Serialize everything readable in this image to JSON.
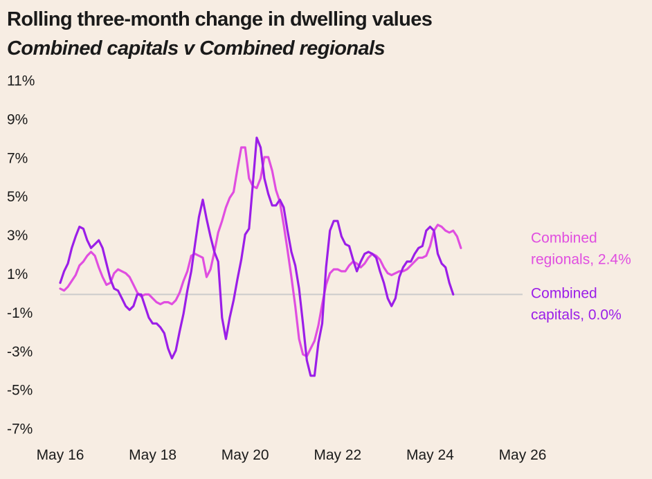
{
  "title": "Rolling three-month change in dwelling values",
  "subtitle": "Combined capitals v Combined regionals",
  "colors": {
    "background": "#f7ede3",
    "zero_line": "#cccccc"
  },
  "chart_data": {
    "type": "line",
    "title": "Rolling three-month change in dwelling values",
    "subtitle": "Combined capitals v Combined regionals",
    "xlabel": "",
    "ylabel": "",
    "x_range": [
      "2016-05",
      "2026-05"
    ],
    "x_ticks": [
      "May 16",
      "May 18",
      "May 20",
      "May 22",
      "May 24",
      "May 26"
    ],
    "ylim": [
      -7,
      11
    ],
    "y_ticks": [
      11,
      9,
      7,
      5,
      3,
      1,
      -1,
      -3,
      -5,
      -7
    ],
    "y_tick_labels": [
      "11%",
      "9%",
      "7%",
      "5%",
      "3%",
      "1%",
      "-1%",
      "-3%",
      "-5%",
      "-7%"
    ],
    "grid": false,
    "zero_line": true,
    "legend": "direct labels at line ends (right)",
    "series": [
      {
        "name": "Combined regionals",
        "end_label": [
          "Combined",
          "regionals, 2.4%"
        ],
        "color": "#e04ee0",
        "points": [
          [
            "2016-05",
            0.3
          ],
          [
            "2016-06",
            0.2
          ],
          [
            "2016-07",
            0.4
          ],
          [
            "2016-08",
            0.7
          ],
          [
            "2016-09",
            1.0
          ],
          [
            "2016-10",
            1.5
          ],
          [
            "2016-11",
            1.7
          ],
          [
            "2016-12",
            2.0
          ],
          [
            "2017-01",
            2.2
          ],
          [
            "2017-02",
            2.0
          ],
          [
            "2017-03",
            1.4
          ],
          [
            "2017-04",
            0.9
          ],
          [
            "2017-05",
            0.5
          ],
          [
            "2017-06",
            0.6
          ],
          [
            "2017-07",
            1.1
          ],
          [
            "2017-08",
            1.3
          ],
          [
            "2017-09",
            1.2
          ],
          [
            "2017-10",
            1.1
          ],
          [
            "2017-11",
            0.9
          ],
          [
            "2017-12",
            0.5
          ],
          [
            "2018-01",
            0.1
          ],
          [
            "2018-02",
            -0.1
          ],
          [
            "2018-03",
            0.0
          ],
          [
            "2018-04",
            0.0
          ],
          [
            "2018-05",
            -0.2
          ],
          [
            "2018-06",
            -0.4
          ],
          [
            "2018-07",
            -0.5
          ],
          [
            "2018-08",
            -0.4
          ],
          [
            "2018-09",
            -0.4
          ],
          [
            "2018-10",
            -0.5
          ],
          [
            "2018-11",
            -0.3
          ],
          [
            "2018-12",
            0.1
          ],
          [
            "2019-01",
            0.7
          ],
          [
            "2019-02",
            1.2
          ],
          [
            "2019-03",
            2.0
          ],
          [
            "2019-04",
            2.1
          ],
          [
            "2019-05",
            2.0
          ],
          [
            "2019-06",
            1.9
          ],
          [
            "2019-07",
            0.9
          ],
          [
            "2019-08",
            1.3
          ],
          [
            "2019-09",
            2.2
          ],
          [
            "2019-10",
            3.2
          ],
          [
            "2019-11",
            3.8
          ],
          [
            "2019-12",
            4.5
          ],
          [
            "2020-01",
            5.0
          ],
          [
            "2020-02",
            5.3
          ],
          [
            "2020-03",
            6.5
          ],
          [
            "2020-04",
            7.6
          ],
          [
            "2020-05",
            7.6
          ],
          [
            "2020-06",
            6.0
          ],
          [
            "2020-07",
            5.6
          ],
          [
            "2020-08",
            5.5
          ],
          [
            "2020-09",
            6.0
          ],
          [
            "2020-10",
            7.1
          ],
          [
            "2020-11",
            7.1
          ],
          [
            "2020-12",
            6.4
          ],
          [
            "2021-01",
            5.4
          ],
          [
            "2021-02",
            4.8
          ],
          [
            "2021-03",
            3.6
          ],
          [
            "2021-04",
            2.3
          ],
          [
            "2021-05",
            0.9
          ],
          [
            "2021-06",
            -0.6
          ],
          [
            "2021-07",
            -2.3
          ],
          [
            "2021-08",
            -3.1
          ],
          [
            "2021-09",
            -3.2
          ],
          [
            "2021-10",
            -2.8
          ],
          [
            "2021-11",
            -2.4
          ],
          [
            "2021-12",
            -1.6
          ],
          [
            "2022-01",
            -0.5
          ],
          [
            "2022-02",
            0.5
          ],
          [
            "2022-03",
            1.1
          ],
          [
            "2022-04",
            1.3
          ],
          [
            "2022-05",
            1.3
          ],
          [
            "2022-06",
            1.2
          ],
          [
            "2022-07",
            1.2
          ],
          [
            "2022-08",
            1.5
          ],
          [
            "2022-09",
            1.7
          ],
          [
            "2022-10",
            1.6
          ],
          [
            "2022-11",
            1.4
          ],
          [
            "2022-12",
            1.6
          ],
          [
            "2023-01",
            1.9
          ],
          [
            "2023-02",
            2.1
          ],
          [
            "2023-03",
            2.0
          ],
          [
            "2023-04",
            1.8
          ],
          [
            "2023-05",
            1.4
          ],
          [
            "2023-06",
            1.1
          ],
          [
            "2023-07",
            1.0
          ],
          [
            "2023-08",
            1.1
          ],
          [
            "2023-09",
            1.2
          ],
          [
            "2023-10",
            1.2
          ],
          [
            "2023-11",
            1.3
          ],
          [
            "2023-12",
            1.5
          ],
          [
            "2024-01",
            1.7
          ],
          [
            "2024-02",
            1.9
          ],
          [
            "2024-03",
            1.9
          ],
          [
            "2024-04",
            2.0
          ],
          [
            "2024-05",
            2.5
          ],
          [
            "2024-06",
            3.3
          ],
          [
            "2024-07",
            3.6
          ],
          [
            "2024-08",
            3.5
          ],
          [
            "2024-09",
            3.3
          ],
          [
            "2024-10",
            3.2
          ],
          [
            "2024-11",
            3.3
          ],
          [
            "2024-12",
            3.0
          ],
          [
            "2025-01",
            2.4
          ]
        ]
      },
      {
        "name": "Combined capitals",
        "end_label": [
          "Combined",
          "capitals, 0.0%"
        ],
        "color": "#9b1ee8",
        "points": [
          [
            "2016-05",
            0.6
          ],
          [
            "2016-06",
            1.2
          ],
          [
            "2016-07",
            1.6
          ],
          [
            "2016-08",
            2.4
          ],
          [
            "2016-09",
            3.0
          ],
          [
            "2016-10",
            3.5
          ],
          [
            "2016-11",
            3.4
          ],
          [
            "2016-12",
            2.8
          ],
          [
            "2017-01",
            2.4
          ],
          [
            "2017-02",
            2.6
          ],
          [
            "2017-03",
            2.8
          ],
          [
            "2017-04",
            2.4
          ],
          [
            "2017-05",
            1.6
          ],
          [
            "2017-06",
            0.8
          ],
          [
            "2017-07",
            0.3
          ],
          [
            "2017-08",
            0.2
          ],
          [
            "2017-09",
            -0.2
          ],
          [
            "2017-10",
            -0.6
          ],
          [
            "2017-11",
            -0.8
          ],
          [
            "2017-12",
            -0.6
          ],
          [
            "2018-01",
            0.0
          ],
          [
            "2018-02",
            0.0
          ],
          [
            "2018-03",
            -0.6
          ],
          [
            "2018-04",
            -1.2
          ],
          [
            "2018-05",
            -1.5
          ],
          [
            "2018-06",
            -1.5
          ],
          [
            "2018-07",
            -1.7
          ],
          [
            "2018-08",
            -2.0
          ],
          [
            "2018-09",
            -2.8
          ],
          [
            "2018-10",
            -3.3
          ],
          [
            "2018-11",
            -2.9
          ],
          [
            "2018-12",
            -1.9
          ],
          [
            "2019-01",
            -1.0
          ],
          [
            "2019-02",
            0.2
          ],
          [
            "2019-03",
            1.2
          ],
          [
            "2019-04",
            2.6
          ],
          [
            "2019-05",
            4.0
          ],
          [
            "2019-06",
            4.9
          ],
          [
            "2019-07",
            3.9
          ],
          [
            "2019-08",
            3.0
          ],
          [
            "2019-09",
            2.2
          ],
          [
            "2019-10",
            1.7
          ],
          [
            "2019-11",
            -1.2
          ],
          [
            "2019-12",
            -2.3
          ],
          [
            "2020-01",
            -1.2
          ],
          [
            "2020-02",
            -0.3
          ],
          [
            "2020-03",
            0.8
          ],
          [
            "2020-04",
            1.8
          ],
          [
            "2020-05",
            3.1
          ],
          [
            "2020-06",
            3.4
          ],
          [
            "2020-07",
            5.7
          ],
          [
            "2020-08",
            8.1
          ],
          [
            "2020-09",
            7.6
          ],
          [
            "2020-10",
            6.0
          ],
          [
            "2020-11",
            5.2
          ],
          [
            "2020-12",
            4.6
          ],
          [
            "2021-01",
            4.6
          ],
          [
            "2021-02",
            4.9
          ],
          [
            "2021-03",
            4.5
          ],
          [
            "2021-04",
            3.3
          ],
          [
            "2021-05",
            2.2
          ],
          [
            "2021-06",
            1.5
          ],
          [
            "2021-07",
            0.3
          ],
          [
            "2021-08",
            -1.5
          ],
          [
            "2021-09",
            -3.4
          ],
          [
            "2021-10",
            -4.2
          ],
          [
            "2021-11",
            -4.2
          ],
          [
            "2021-12",
            -2.5
          ],
          [
            "2022-01",
            -1.5
          ],
          [
            "2022-02",
            1.4
          ],
          [
            "2022-03",
            3.3
          ],
          [
            "2022-04",
            3.8
          ],
          [
            "2022-05",
            3.8
          ],
          [
            "2022-06",
            3.0
          ],
          [
            "2022-07",
            2.6
          ],
          [
            "2022-08",
            2.5
          ],
          [
            "2022-09",
            1.8
          ],
          [
            "2022-10",
            1.2
          ],
          [
            "2022-11",
            1.7
          ],
          [
            "2022-12",
            2.1
          ],
          [
            "2023-01",
            2.2
          ],
          [
            "2023-02",
            2.1
          ],
          [
            "2023-03",
            1.9
          ],
          [
            "2023-04",
            1.2
          ],
          [
            "2023-05",
            0.6
          ],
          [
            "2023-06",
            -0.2
          ],
          [
            "2023-07",
            -0.6
          ],
          [
            "2023-08",
            -0.2
          ],
          [
            "2023-09",
            0.9
          ],
          [
            "2023-10",
            1.4
          ],
          [
            "2023-11",
            1.7
          ],
          [
            "2023-12",
            1.7
          ],
          [
            "2024-01",
            2.1
          ],
          [
            "2024-02",
            2.4
          ],
          [
            "2024-03",
            2.5
          ],
          [
            "2024-04",
            3.3
          ],
          [
            "2024-05",
            3.5
          ],
          [
            "2024-06",
            3.3
          ],
          [
            "2024-07",
            2.1
          ],
          [
            "2024-08",
            1.6
          ],
          [
            "2024-09",
            1.4
          ],
          [
            "2024-10",
            0.6
          ],
          [
            "2024-11",
            0.0
          ]
        ]
      }
    ]
  }
}
